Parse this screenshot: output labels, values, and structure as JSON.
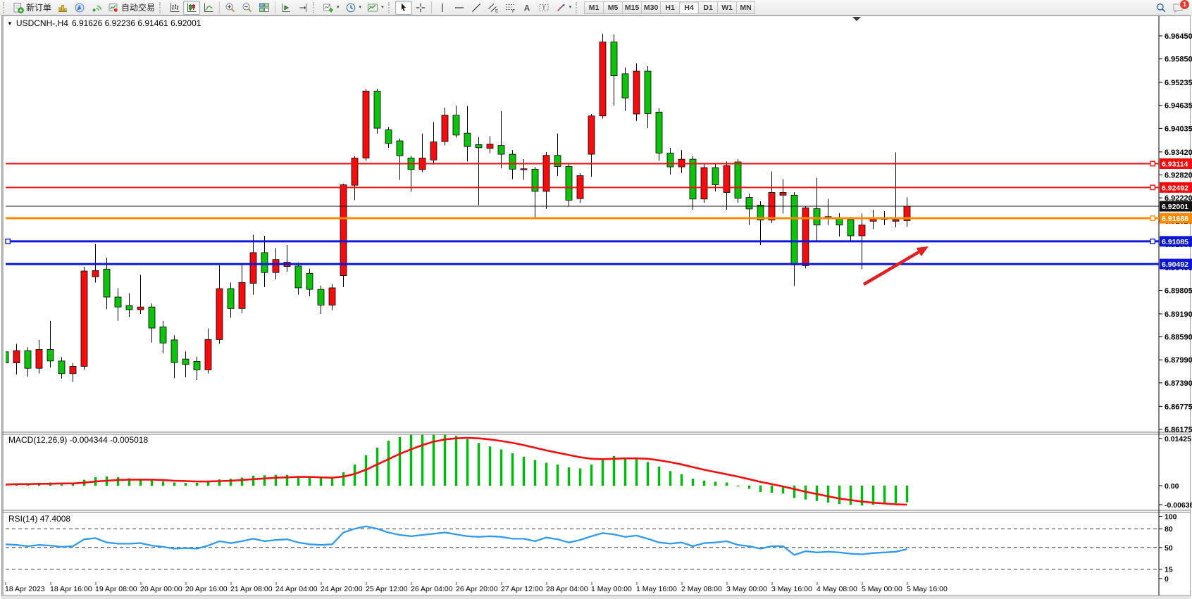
{
  "toolbar": {
    "new_order_label": "新订单",
    "autotrading_label": "自动交易",
    "timeframes": [
      "M1",
      "M5",
      "M15",
      "M30",
      "H1",
      "H4",
      "D1",
      "W1",
      "MN"
    ],
    "active_timeframe": "H4",
    "notification_count": "1"
  },
  "icons": {
    "dropdown_caret": "▾",
    "title_collapse": "▼"
  },
  "chart": {
    "title_symbol": "USDCNH-,H4",
    "title_ohlc": "6.91626 6.92236 6.91461 6.92001"
  },
  "chart_data": [
    {
      "type": "candlestick",
      "symbol": "USDCNH-",
      "timeframe": "H4",
      "up_color": "#f50d0d",
      "down_color": "#0cc40c",
      "last_bar": {
        "open": 6.91626,
        "high": 6.92236,
        "low": 6.91461,
        "close": 6.92001
      },
      "y_ticks": [
        "6.96450",
        "6.95850",
        "6.95235",
        "6.94635",
        "6.94035",
        "6.93420",
        "6.92820",
        "6.92220",
        "6.91620",
        "6.91005",
        "6.90405",
        "6.89805",
        "6.89190",
        "6.88590",
        "6.87990",
        "6.87390",
        "6.86775",
        "6.86175"
      ],
      "x_labels": [
        "18 Apr 2023",
        "18 Apr 16:00",
        "19 Apr 08:00",
        "20 Apr 00:00",
        "20 Apr 16:00",
        "21 Apr 08:00",
        "24 Apr 04:00",
        "24 Apr 20:00",
        "25 Apr 12:00",
        "26 Apr 04:00",
        "26 Apr 20:00",
        "27 Apr 12:00",
        "28 Apr 04:00",
        "1 May 00:00",
        "1 May 16:00",
        "2 May 08:00",
        "3 May 00:00",
        "3 May 16:00",
        "4 May 08:00",
        "5 May 00:00",
        "5 May 16:00"
      ],
      "levels": [
        {
          "label": "6.93114",
          "price": 6.93114,
          "color": "#ee0c0c",
          "width": 2,
          "handles": "r"
        },
        {
          "label": "6.92492",
          "price": 6.92492,
          "color": "#ee0c0c",
          "width": 2,
          "handles": "r"
        },
        {
          "label": "6.92001",
          "price": 6.92001,
          "color": "#101010",
          "width": 1,
          "handles": ""
        },
        {
          "label": "6.91688",
          "price": 6.91688,
          "color": "#ff8a00",
          "width": 3,
          "handles": "r"
        },
        {
          "label": "6.91085",
          "price": 6.91085,
          "color": "#0b16d8",
          "width": 3,
          "handles": "lr"
        },
        {
          "label": "6.90492",
          "price": 6.90492,
          "color": "#0b16d8",
          "width": 3,
          "handles": ""
        }
      ],
      "candles": [
        [
          6.882,
          6.8832,
          6.8782,
          6.8791
        ],
        [
          6.8791,
          6.8841,
          6.8761,
          6.8823
        ],
        [
          6.8823,
          6.8832,
          6.8755,
          6.8777
        ],
        [
          6.8777,
          6.8851,
          6.8763,
          6.8826
        ],
        [
          6.8826,
          6.8901,
          6.8779,
          6.8796
        ],
        [
          6.8796,
          6.8806,
          6.875,
          6.8763
        ],
        [
          6.8763,
          6.8791,
          6.8741,
          6.8782
        ],
        [
          6.8782,
          6.9042,
          6.8773,
          6.9031
        ],
        [
          6.9016,
          6.9101,
          6.9001,
          6.9032
        ],
        [
          6.9036,
          6.9066,
          6.8931,
          6.8963
        ],
        [
          6.8963,
          6.8986,
          6.8901,
          6.8937
        ],
        [
          6.8941,
          6.8973,
          6.8911,
          6.893
        ],
        [
          6.893,
          6.9021,
          6.8919,
          6.8937
        ],
        [
          6.8937,
          6.8946,
          6.8844,
          6.8882
        ],
        [
          6.8885,
          6.8901,
          6.8816,
          6.8843
        ],
        [
          6.8851,
          6.8863,
          6.8751,
          6.8792
        ],
        [
          6.8801,
          6.8821,
          6.8753,
          6.8787
        ],
        [
          6.8795,
          6.8807,
          6.8746,
          6.8773
        ],
        [
          6.8773,
          6.8881,
          6.8763,
          6.8852
        ],
        [
          6.8852,
          6.9046,
          6.8841,
          6.8985
        ],
        [
          6.8985,
          6.9001,
          6.8909,
          6.8933
        ],
        [
          6.8933,
          6.9051,
          6.8921,
          6.9001
        ],
        [
          6.8999,
          6.9126,
          6.8969,
          6.9079
        ],
        [
          6.9079,
          6.9123,
          6.8989,
          6.9027
        ],
        [
          6.9027,
          6.9091,
          6.9009,
          6.9061
        ],
        [
          6.9043,
          6.9099,
          6.9029,
          6.9054
        ],
        [
          6.9044,
          6.9053,
          6.8969,
          6.8987
        ],
        [
          6.9025,
          6.9037,
          6.8965,
          6.8983
        ],
        [
          6.8983,
          6.8993,
          6.8919,
          6.8942
        ],
        [
          6.8942,
          6.8997,
          6.8929,
          6.8987
        ],
        [
          6.9019,
          6.9259,
          6.8989,
          6.9256
        ],
        [
          6.9255,
          6.9331,
          6.9216,
          6.9326
        ],
        [
          6.9326,
          6.9506,
          6.9319,
          6.9501
        ],
        [
          6.9501,
          6.9507,
          6.9389,
          6.9404
        ],
        [
          6.94,
          6.9407,
          6.9353,
          6.9364
        ],
        [
          6.9371,
          6.9377,
          6.9269,
          6.9332
        ],
        [
          6.9326,
          6.9332,
          6.9238,
          6.9296
        ],
        [
          6.9296,
          6.939,
          6.9289,
          6.9326
        ],
        [
          6.9321,
          6.942,
          6.9309,
          6.9368
        ],
        [
          6.9369,
          6.9458,
          6.9359,
          6.9438
        ],
        [
          6.9438,
          6.9463,
          6.9379,
          6.9386
        ],
        [
          6.9391,
          6.9462,
          6.9317,
          6.9356
        ],
        [
          6.9361,
          6.9381,
          6.9203,
          6.9353
        ],
        [
          6.9351,
          6.9383,
          6.9339,
          6.9362
        ],
        [
          6.9359,
          6.9449,
          6.9299,
          6.9336
        ],
        [
          6.9336,
          6.9347,
          6.9271,
          6.9297
        ],
        [
          6.9297,
          6.9323,
          6.9269,
          6.9298
        ],
        [
          6.9297,
          6.9303,
          6.917,
          6.9239
        ],
        [
          6.9239,
          6.9342,
          6.9193,
          6.9333
        ],
        [
          6.9333,
          6.939,
          6.9279,
          6.9304
        ],
        [
          6.9304,
          6.9312,
          6.9199,
          6.9216
        ],
        [
          6.922,
          6.9287,
          6.9209,
          6.928
        ],
        [
          6.9336,
          6.9441,
          6.9277,
          6.9436
        ],
        [
          6.9436,
          6.9651,
          6.9429,
          6.9629
        ],
        [
          6.9629,
          6.9649,
          6.9463,
          6.9541
        ],
        [
          6.9546,
          6.9563,
          6.9449,
          6.9483
        ],
        [
          6.9441,
          6.9573,
          6.9423,
          6.9553
        ],
        [
          6.9553,
          6.9566,
          6.9404,
          6.9442
        ],
        [
          6.9446,
          6.9456,
          6.9319,
          6.9339
        ],
        [
          6.9339,
          6.9353,
          6.9283,
          6.9303
        ],
        [
          6.9303,
          6.9347,
          6.9287,
          6.9323
        ],
        [
          6.9323,
          6.9331,
          6.9191,
          6.9219
        ],
        [
          6.9219,
          6.9313,
          6.9209,
          6.9301
        ],
        [
          6.9301,
          6.9313,
          6.9239,
          6.9256
        ],
        [
          6.9236,
          6.9317,
          6.9191,
          6.9306
        ],
        [
          6.9316,
          6.9323,
          6.9209,
          6.9221
        ],
        [
          6.9223,
          6.9233,
          6.9151,
          6.9193
        ],
        [
          6.9203,
          6.9213,
          6.9099,
          6.9164
        ],
        [
          6.9164,
          6.9291,
          6.9156,
          6.9236
        ],
        [
          6.9229,
          6.9271,
          6.9181,
          6.9236
        ],
        [
          6.9229,
          6.9237,
          6.8992,
          6.9047
        ],
        [
          6.9045,
          6.9201,
          6.9038,
          6.9196
        ],
        [
          6.9194,
          6.9274,
          6.9109,
          6.9151
        ],
        [
          6.9168,
          6.9219,
          6.9151,
          6.9173
        ],
        [
          6.9169,
          6.9182,
          6.9121,
          6.9151
        ],
        [
          6.9165,
          6.9172,
          6.9111,
          6.9123
        ],
        [
          6.9123,
          6.9181,
          6.9036,
          6.9151
        ],
        [
          6.9161,
          6.9191,
          6.9141,
          6.9169
        ],
        [
          6.9166,
          6.9187,
          6.9151,
          6.9171
        ],
        [
          6.9161,
          6.9341,
          6.9145,
          6.9165
        ],
        [
          6.91626,
          6.92236,
          6.91461,
          6.92001
        ]
      ]
    },
    {
      "type": "bar",
      "name": "MACD",
      "label": "MACD(12,26,9)",
      "values_text": "-0.004344 -0.005018",
      "current": [
        -0.004344,
        -0.005018
      ],
      "y_ticks": [
        "0.01425",
        "0.00",
        "-0.006367"
      ],
      "bar_color": "#00c40c",
      "signal_color": "#f50d0d",
      "values": [
        0.0004,
        0.0006,
        0.0005,
        0.0007,
        0.0008,
        0.0006,
        0.0005,
        0.0015,
        0.0022,
        0.0024,
        0.0022,
        0.0019,
        0.0018,
        0.0014,
        0.0011,
        0.0008,
        0.0007,
        0.0007,
        0.001,
        0.0016,
        0.0018,
        0.0021,
        0.0026,
        0.0027,
        0.0028,
        0.0028,
        0.0025,
        0.0022,
        0.0019,
        0.0018,
        0.0035,
        0.0055,
        0.008,
        0.01,
        0.0118,
        0.0128,
        0.0135,
        0.0139,
        0.0141,
        0.0138,
        0.0131,
        0.0122,
        0.0112,
        0.0103,
        0.0095,
        0.0085,
        0.0076,
        0.0067,
        0.006,
        0.0055,
        0.0048,
        0.0045,
        0.0055,
        0.007,
        0.0078,
        0.0074,
        0.007,
        0.0062,
        0.005,
        0.0038,
        0.003,
        0.0018,
        0.0013,
        0.001,
        0.0008,
        0.0,
        -0.0008,
        -0.0016,
        -0.0018,
        -0.002,
        -0.0032,
        -0.0036,
        -0.004,
        -0.0044,
        -0.0048,
        -0.005,
        -0.0052,
        -0.005,
        -0.0048,
        -0.0046,
        -0.004344
      ],
      "signal": [
        0.0003,
        0.0004,
        0.0004,
        0.0005,
        0.0005,
        0.0006,
        0.0006,
        0.0008,
        0.0011,
        0.0013,
        0.0015,
        0.0016,
        0.0016,
        0.0016,
        0.0015,
        0.0013,
        0.0012,
        0.0011,
        0.0011,
        0.0012,
        0.0013,
        0.0015,
        0.0017,
        0.0019,
        0.0021,
        0.0022,
        0.0023,
        0.0023,
        0.0022,
        0.0021,
        0.0024,
        0.0031,
        0.0042,
        0.0056,
        0.007,
        0.0084,
        0.0096,
        0.0107,
        0.0116,
        0.0122,
        0.0125,
        0.0126,
        0.0125,
        0.0122,
        0.0118,
        0.0113,
        0.0107,
        0.01,
        0.0093,
        0.0087,
        0.0081,
        0.0075,
        0.0071,
        0.007,
        0.0071,
        0.0072,
        0.0072,
        0.0071,
        0.0067,
        0.0062,
        0.0056,
        0.0049,
        0.0042,
        0.0036,
        0.003,
        0.0024,
        0.0017,
        0.001,
        0.0004,
        -0.0002,
        -0.0009,
        -0.0016,
        -0.0022,
        -0.0028,
        -0.0034,
        -0.0038,
        -0.0042,
        -0.0045,
        -0.0047,
        -0.0049,
        -0.005018
      ]
    },
    {
      "type": "line",
      "name": "RSI",
      "label": "RSI(14)",
      "value_text": "47.4008",
      "current": 47.4008,
      "y_ticks": [
        "100",
        "80",
        "50",
        "15",
        "0"
      ],
      "levels": [
        80,
        50,
        15
      ],
      "line_color": "#2e9bf0",
      "values": [
        55,
        54,
        52,
        54,
        53,
        51,
        52,
        63,
        65,
        58,
        56,
        56,
        57,
        53,
        51,
        48,
        49,
        48,
        53,
        60,
        57,
        60,
        64,
        60,
        62,
        63,
        58,
        55,
        54,
        55,
        74,
        80,
        84,
        80,
        74,
        70,
        68,
        70,
        72,
        74,
        71,
        68,
        67,
        68,
        67,
        64,
        64,
        60,
        66,
        63,
        58,
        62,
        68,
        73,
        71,
        67,
        69,
        64,
        58,
        56,
        58,
        52,
        57,
        58,
        60,
        54,
        52,
        48,
        52,
        52,
        38,
        44,
        42,
        43,
        42,
        40,
        39,
        41,
        42,
        43,
        47.4
      ]
    }
  ],
  "annotation_arrow": {
    "from": [
      1226,
      404
    ],
    "to": [
      1318,
      350
    ],
    "color": "#e02020"
  }
}
